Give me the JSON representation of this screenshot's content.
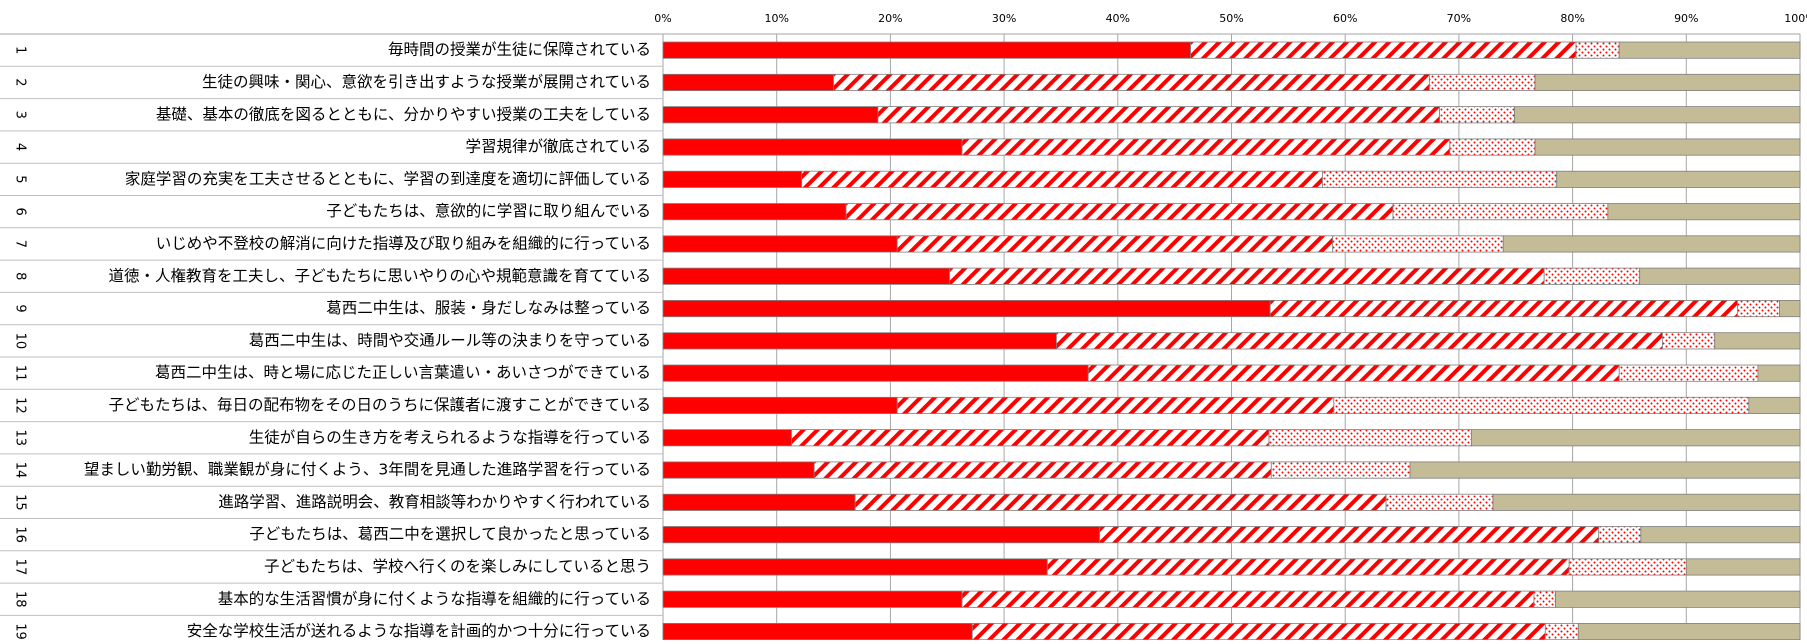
{
  "chart_data": {
    "type": "bar",
    "orientation": "horizontal",
    "stacked": "percent",
    "xlim": [
      0,
      100
    ],
    "x_ticks": [
      0,
      10,
      20,
      30,
      40,
      50,
      60,
      70,
      80,
      90,
      100
    ],
    "x_tick_labels": [
      "0%",
      "10%",
      "20%",
      "30%",
      "40%",
      "50%",
      "60%",
      "70%",
      "80%",
      "90%",
      "100%"
    ],
    "legend": "none",
    "grid": "vertical",
    "row_numbers": [
      "1",
      "2",
      "3",
      "4",
      "5",
      "6",
      "7",
      "8",
      "9",
      "10",
      "11",
      "12",
      "13",
      "14",
      "15",
      "16",
      "17",
      "18",
      "19"
    ],
    "categories": [
      "毎時間の授業が生徒に保障されている",
      "生徒の興味・関心、意欲を引き出すような授業が展開されている",
      "基礎、基本の徹底を図るとともに、分かりやすい授業の工夫をしている",
      "学習規律が徹底されている",
      "家庭学習の充実を工夫させるとともに、学習の到達度を適切に評価している",
      "子どもたちは、意欲的に学習に取り組んでいる",
      "いじめや不登校の解消に向けた指導及び取り組みを組織的に行っている",
      "道徳・人権教育を工夫し、子どもたちに思いやりの心や規範意識を育てている",
      "葛西二中生は、服装・身だしなみは整っている",
      "葛西二中生は、時間や交通ルール等の決まりを守っている",
      "葛西二中生は、時と場に応じた正しい言葉遣い・あいさつができている",
      "子どもたちは、毎日の配布物をその日のうちに保護者に渡すことができている",
      "生徒が自らの生き方を考えられるような指導を行っている",
      "望ましい勤労観、職業観が身に付くよう、3年間を見通した進路学習を行っている",
      "進路学習、進路説明会、教育相談等わかりやすく行われている",
      "子どもたちは、葛西二中を選択して良かったと思っている",
      "子どもたちは、学校へ行くのを楽しみにしていると思う",
      "基本的な生活習慣が身に付くような指導を組織的に行っている",
      "安全な学校生活が送れるような指導を計画的かつ十分に行っている"
    ],
    "series": [
      {
        "values": [
          46.4,
          15.0,
          18.9,
          26.3,
          12.2,
          16.1,
          20.6,
          25.2,
          53.4,
          34.6,
          37.4,
          20.6,
          11.3,
          13.3,
          16.9,
          38.4,
          33.8,
          26.3,
          27.2
        ]
      },
      {
        "values": [
          33.9,
          52.4,
          49.4,
          42.9,
          45.8,
          48.1,
          38.3,
          52.3,
          41.1,
          53.3,
          46.7,
          38.4,
          42.0,
          40.2,
          46.7,
          43.9,
          45.9,
          50.3,
          50.4
        ]
      },
      {
        "values": [
          3.8,
          9.3,
          6.6,
          7.5,
          20.6,
          18.9,
          15.0,
          8.4,
          3.7,
          4.6,
          12.2,
          36.5,
          17.8,
          12.2,
          9.4,
          3.7,
          10.3,
          1.9,
          2.9
        ]
      },
      {
        "values": [
          15.9,
          23.3,
          25.1,
          23.3,
          21.4,
          16.9,
          26.1,
          14.1,
          1.8,
          7.5,
          3.7,
          4.5,
          28.9,
          34.3,
          27.0,
          14.0,
          10.0,
          21.5,
          19.5
        ]
      }
    ],
    "colors": {
      "solid": "#ff0000",
      "hatch": "#ff0000",
      "dots": "#ff0000",
      "tan": "#c4bc96",
      "outline": "#7f7f7f"
    }
  }
}
